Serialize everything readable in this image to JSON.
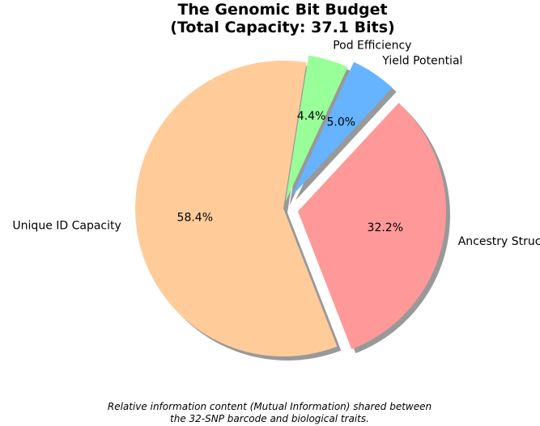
{
  "chart_data": {
    "type": "pie",
    "title_lines": [
      "The Genomic Bit Budget",
      "(Total Capacity: 37.1 Bits)"
    ],
    "caption_lines": [
      "Relative information content (Mutual Information) shared between",
      "the 32-SNP barcode and biological traits."
    ],
    "start_angle_deg": 81,
    "direction": "counterclockwise",
    "shadow": true,
    "slices": [
      {
        "label": "Unique ID Capacity",
        "value": 58.4,
        "pct_label": "58.4%",
        "color": "#ffcc99",
        "explode": 0.0
      },
      {
        "label": "Ancestry Structure",
        "value": 32.2,
        "pct_label": "32.2%",
        "color": "#ff9999",
        "explode": 0.1
      },
      {
        "label": "Yield Potential",
        "value": 5.0,
        "pct_label": "5.0%",
        "color": "#66b3ff",
        "explode": 0.1
      },
      {
        "label": "Pod Efficiency",
        "value": 4.4,
        "pct_label": "4.4%",
        "color": "#99ff99",
        "explode": 0.05
      }
    ]
  }
}
